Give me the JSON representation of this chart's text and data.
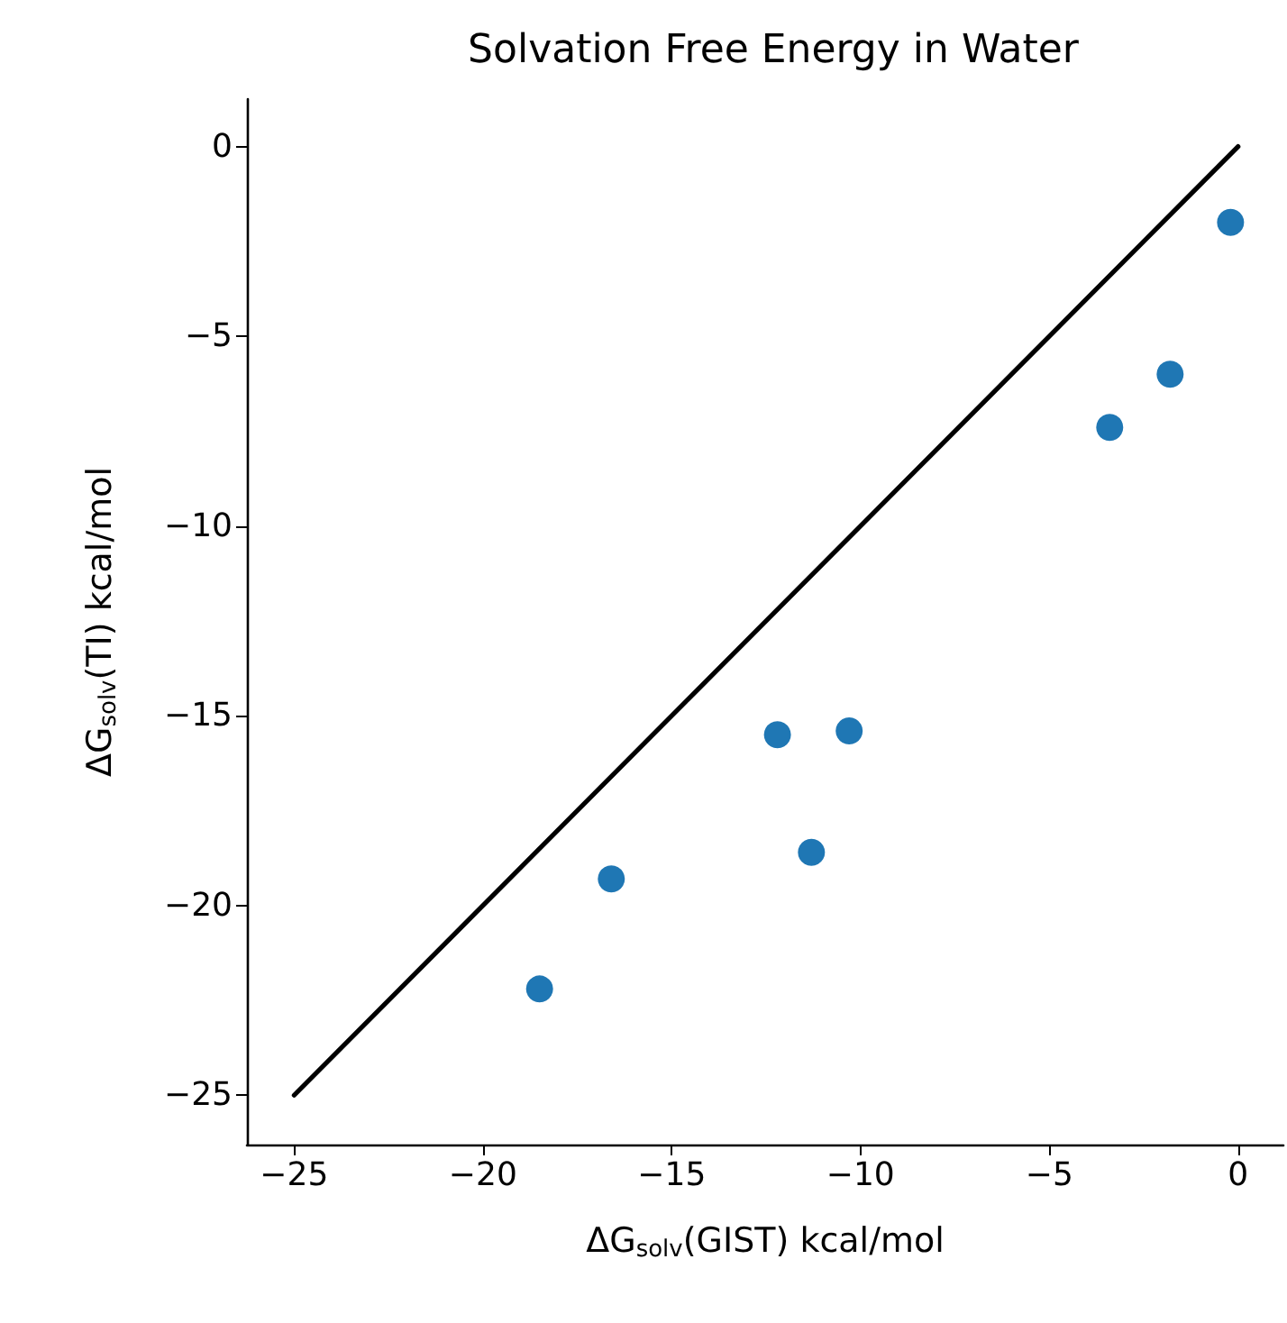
{
  "chart_data": {
    "type": "scatter",
    "title": "Solvation Free Energy in Water",
    "xlabel": "ΔG$_{solv}$(GIST) kcal/mol",
    "ylabel": "ΔG$_{solv}$(TI) kcal/mol",
    "xlim": [
      -26.25,
      1.2
    ],
    "ylim": [
      -26.3,
      1.25
    ],
    "xticks": [
      -25,
      -20,
      -15,
      -10,
      -5,
      0
    ],
    "yticks": [
      -25,
      -20,
      -15,
      -10,
      -5,
      0
    ],
    "grid": false,
    "marker": "circle",
    "series": [
      {
        "color": "#1f77b4",
        "x": [
          -0.2,
          -1.8,
          -3.4,
          -10.3,
          -12.2,
          -11.3,
          -16.6,
          -18.5
        ],
        "values": [
          -2.0,
          -6.0,
          -7.4,
          -15.4,
          -15.5,
          -18.6,
          -19.3,
          -22.2
        ]
      },
      {
        "type": "line",
        "color": "#000000",
        "marker": "none",
        "x": [
          -25,
          0
        ],
        "values": [
          -25,
          0
        ]
      }
    ]
  }
}
